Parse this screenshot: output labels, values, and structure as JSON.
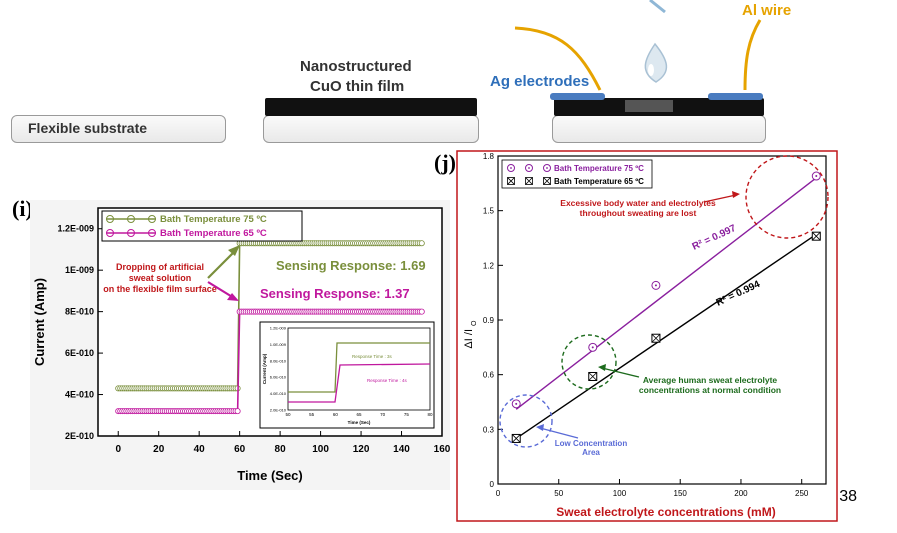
{
  "schematic": {
    "substrate_label": "Flexible substrate",
    "film_label_line1": "Nanostructured",
    "film_label_line2": "CuO thin film",
    "ag_label": "Ag electrodes",
    "al_label": "Al wire"
  },
  "page_number": "38",
  "chart_data": [
    {
      "panel_label": "(i)",
      "type": "line",
      "xlabel": "Time (Sec)",
      "ylabel": "Current (Amp)",
      "xlim": [
        -10,
        160
      ],
      "ylim": [
        2e-10,
        1.3e-09
      ],
      "xticks": [
        0,
        20,
        40,
        60,
        80,
        100,
        120,
        140,
        160
      ],
      "yticks": [
        2e-10,
        4e-10,
        6e-10,
        8e-10,
        1e-09,
        1.2e-09
      ],
      "ytick_labels": [
        "2E-010",
        "4E-010",
        "6E-010",
        "8E-010",
        "1E-009",
        "1.2E-009"
      ],
      "legend_position": "top-left",
      "series": [
        {
          "name": "Bath Temperature 75 ºC",
          "color": "#7a8f3c",
          "step_x": 60,
          "before": 4.3e-10,
          "after": 1.13e-09,
          "x_start": 0,
          "x_end": 150
        },
        {
          "name": "Bath Temperature 65 ºC",
          "color": "#c0189e",
          "step_x": 60,
          "before": 3.2e-10,
          "after": 8e-10,
          "x_start": 0,
          "x_end": 150
        }
      ],
      "annotations": {
        "drop_line1": "Dropping of artificial",
        "drop_line2": "sweat solution",
        "drop_line3": "on the flexible film surface",
        "resp75": "Sensing Response: 1.69",
        "resp65": "Sensing Response: 1.37"
      },
      "inset": {
        "xlabel": "Time (Sec)",
        "ylabel": "Current (Amp)",
        "xticks": [
          50,
          55,
          60,
          65,
          70,
          75,
          80
        ],
        "ytick_labels": [
          "2.0E-010",
          "4.0E-010",
          "6.0E-010",
          "8.0E-010",
          "1.0E-009",
          "1.2E-009"
        ],
        "resp_time_75": "Response Time : 3s",
        "resp_time_65": "Response Time : 4s"
      }
    },
    {
      "panel_label": "(j)",
      "type": "scatter",
      "xlabel": "Sweat electrolyte concentrations (mM)",
      "ylabel": "ΔI /I",
      "ylabel_sub": "O",
      "xlim": [
        0,
        270
      ],
      "ylim": [
        0,
        1.8
      ],
      "xticks": [
        0,
        50,
        100,
        150,
        200,
        250
      ],
      "yticks": [
        0.0,
        0.3,
        0.6,
        0.9,
        1.2,
        1.5,
        1.8
      ],
      "ytick_labels": [
        "0",
        "0.3",
        "0.6",
        "0.9",
        "1.2",
        "1.5",
        "1.8"
      ],
      "legend_position": "top-left",
      "series": [
        {
          "name": "Bath Temperature 75 ºC",
          "color": "#8a1f9e",
          "marker": "circle-dot",
          "x": [
            15,
            78,
            130,
            262
          ],
          "y": [
            0.44,
            0.75,
            1.09,
            1.69
          ],
          "fit": [
            [
              15,
              0.41
            ],
            [
              262,
              1.68
            ]
          ],
          "r2_label": "R² = 0.997"
        },
        {
          "name": "Bath Temperature 65 ºC",
          "color": "#000000",
          "marker": "box-x",
          "x": [
            15,
            78,
            130,
            262
          ],
          "y": [
            0.25,
            0.59,
            0.8,
            1.36
          ],
          "fit": [
            [
              15,
              0.25
            ],
            [
              262,
              1.37
            ]
          ],
          "r2_label": "R² = 0.994"
        }
      ],
      "annotations": {
        "excess_line1": "Excessive body water and electrolytes",
        "excess_line2": "throughout sweating are lost",
        "avg_line1": "Average human sweat electrolyte",
        "avg_line2": "concentrations at normal condition",
        "low_line1": "Low Concentration",
        "low_line2": "Area"
      }
    }
  ]
}
